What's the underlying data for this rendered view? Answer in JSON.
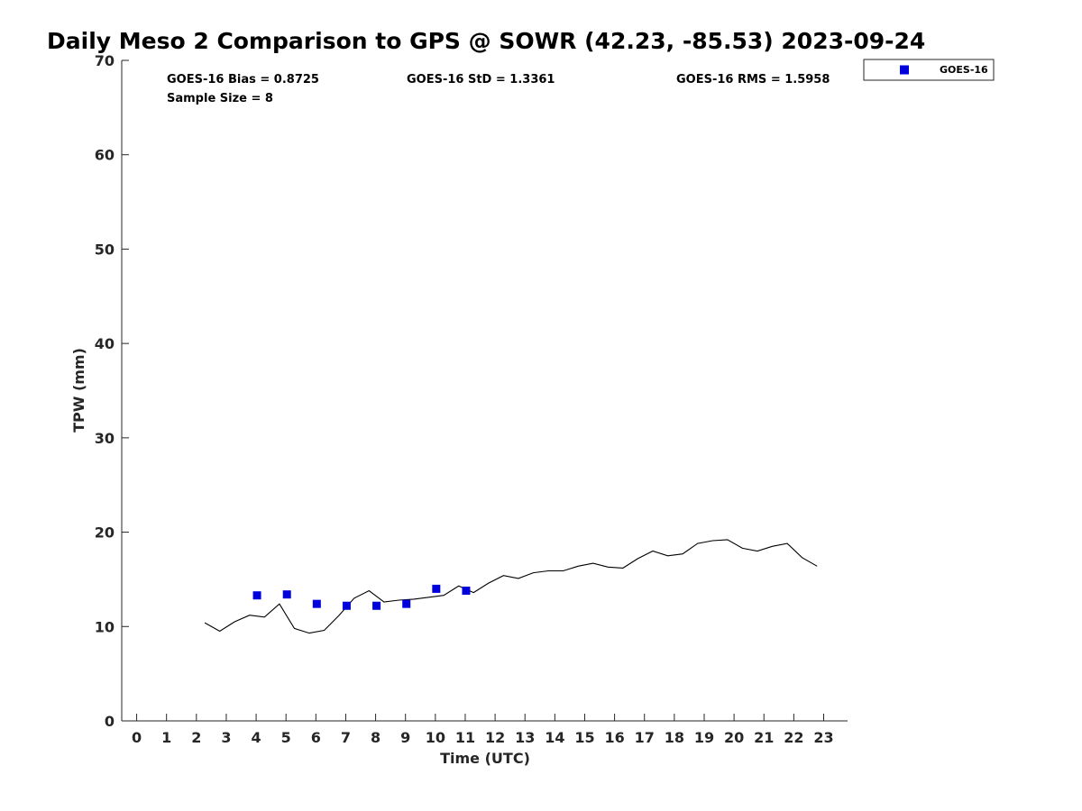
{
  "chart_data": {
    "type": "scatter",
    "title": "Daily Meso 2 Comparison to GPS @ SOWR (42.23, -85.53) 2023-09-24",
    "xlabel": "Time (UTC)",
    "ylabel": "TPW (mm)",
    "xlim": [
      -0.5,
      23.8
    ],
    "ylim": [
      0,
      70
    ],
    "x_ticks": [
      "0",
      "1",
      "2",
      "3",
      "4",
      "5",
      "6",
      "7",
      "8",
      "9",
      "10",
      "11",
      "12",
      "13",
      "14",
      "15",
      "16",
      "17",
      "18",
      "19",
      "20",
      "21",
      "22",
      "23"
    ],
    "y_ticks": [
      "0",
      "10",
      "20",
      "30",
      "40",
      "50",
      "60",
      "70"
    ],
    "grid": false,
    "legend_position": "top-right, outside plot",
    "stats": {
      "bias": "GOES-16 Bias = 0.8725",
      "std": "GOES-16 StD = 1.3361",
      "rms": "GOES-16 RMS = 1.5958",
      "sample": "Sample Size = 8"
    },
    "series": [
      {
        "name": "GOES-16",
        "kind": "scatter",
        "color": "#0000dd",
        "marker": "square",
        "x": [
          4.03,
          5.03,
          6.03,
          7.03,
          8.03,
          9.03,
          10.03,
          11.03
        ],
        "y": [
          13.3,
          13.4,
          12.4,
          12.2,
          12.2,
          12.4,
          14.0,
          13.8
        ]
      },
      {
        "kind": "line",
        "color": "#000000",
        "x": [
          2.28,
          2.78,
          3.28,
          3.78,
          4.28,
          4.78,
          5.28,
          5.78,
          6.28,
          6.78,
          7.28,
          7.78,
          8.28,
          8.78,
          9.28,
          9.78,
          10.28,
          10.78,
          11.28,
          11.78,
          12.28,
          12.78,
          13.28,
          13.78,
          14.28,
          14.78,
          15.28,
          15.78,
          16.28,
          16.78,
          17.28,
          17.78,
          18.28,
          18.78,
          19.28,
          19.78,
          20.28,
          20.78,
          21.28,
          21.78,
          22.28,
          22.78
        ],
        "y": [
          10.4,
          9.5,
          10.5,
          11.2,
          11.0,
          12.4,
          9.8,
          9.3,
          9.6,
          11.2,
          13.0,
          13.8,
          12.6,
          12.8,
          12.9,
          13.1,
          13.3,
          14.3,
          13.6,
          14.6,
          15.4,
          15.1,
          15.7,
          15.9,
          15.9,
          16.4,
          16.7,
          16.3,
          16.2,
          17.2,
          18.0,
          17.5,
          17.7,
          18.8,
          19.1,
          19.2,
          18.3,
          18.0,
          18.5,
          18.8,
          17.3,
          16.4
        ]
      }
    ]
  }
}
